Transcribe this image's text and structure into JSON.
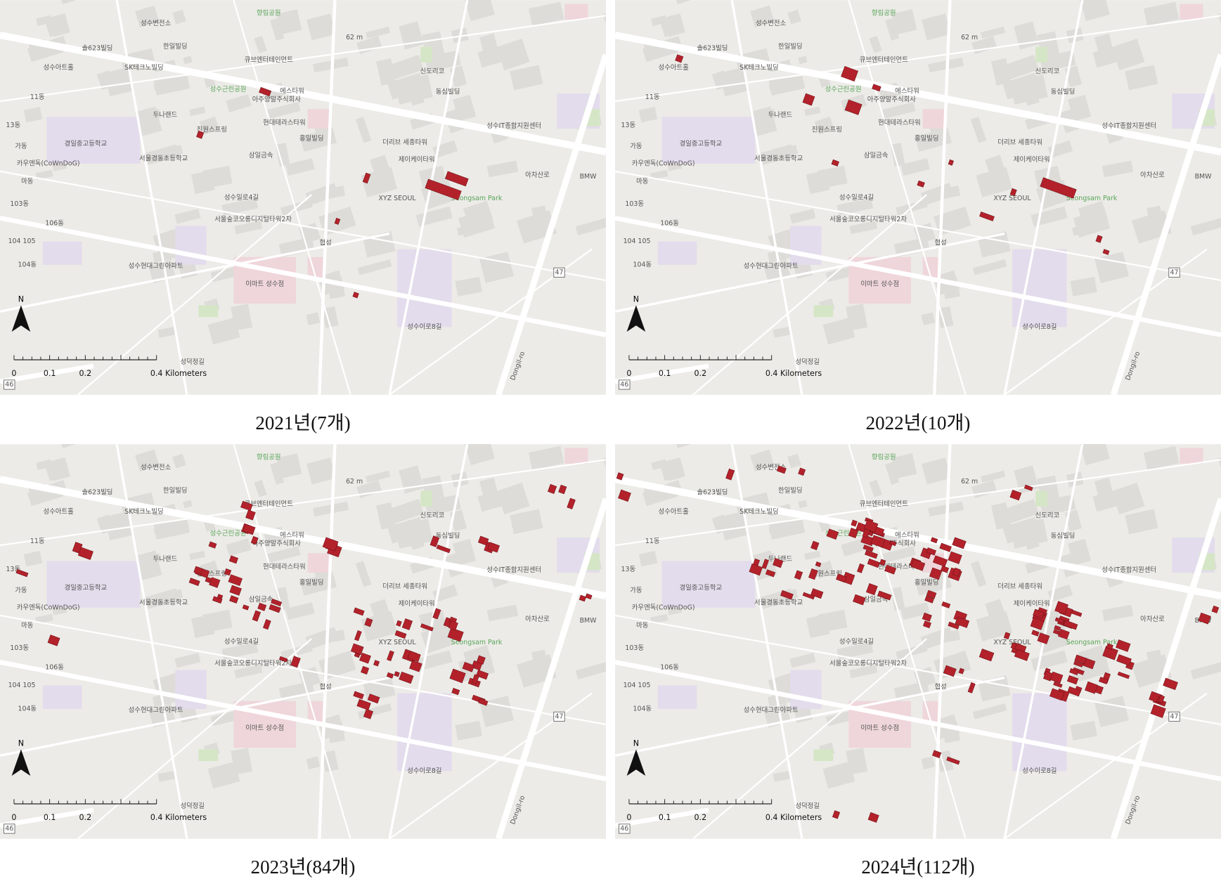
{
  "panels": [
    {
      "caption": "2021년(7개)"
    },
    {
      "caption": "2022년(10개)"
    },
    {
      "caption": "2023년(84개)"
    },
    {
      "caption": "2024년(112개)"
    }
  ],
  "map_labels": [
    "향림공원",
    "성수변전소",
    "62 m",
    "솔623빌딩",
    "한일빌딩",
    "큐브엔터테인먼트",
    "성수아트홀",
    "SK테크노빌딩",
    "신도리코",
    "성수근린공원",
    "에스타워",
    "아주양말주식회사",
    "동심빌딩",
    "11동",
    "두나랜드",
    "현대테라스타워",
    "성수IT종합지원센터",
    "13동",
    "진원스프링",
    "홍일빌딩",
    "더리브 세종타워",
    "가동",
    "경일중고등학교",
    "서울경동초등학교",
    "삼일금속",
    "제이케이타워",
    "카우엔독(CoWnDoG)",
    "아차산로",
    "BMW",
    "마동",
    "성수일로4길",
    "XYZ SEOUL",
    "Seongsam Park",
    "103동",
    "서울숲코오롱디지털타워2차",
    "106동",
    "104 105",
    "협성",
    "104동",
    "성수현대그린아파트",
    "이마트 성수점",
    "47",
    "성수이로8길",
    "성덕정길",
    "46",
    "Dongil-ro"
  ],
  "north": "N",
  "scale_bar": {
    "ticks": [
      "0",
      "0.1",
      "0.2"
    ],
    "end": "0.4 Kilometers"
  }
}
